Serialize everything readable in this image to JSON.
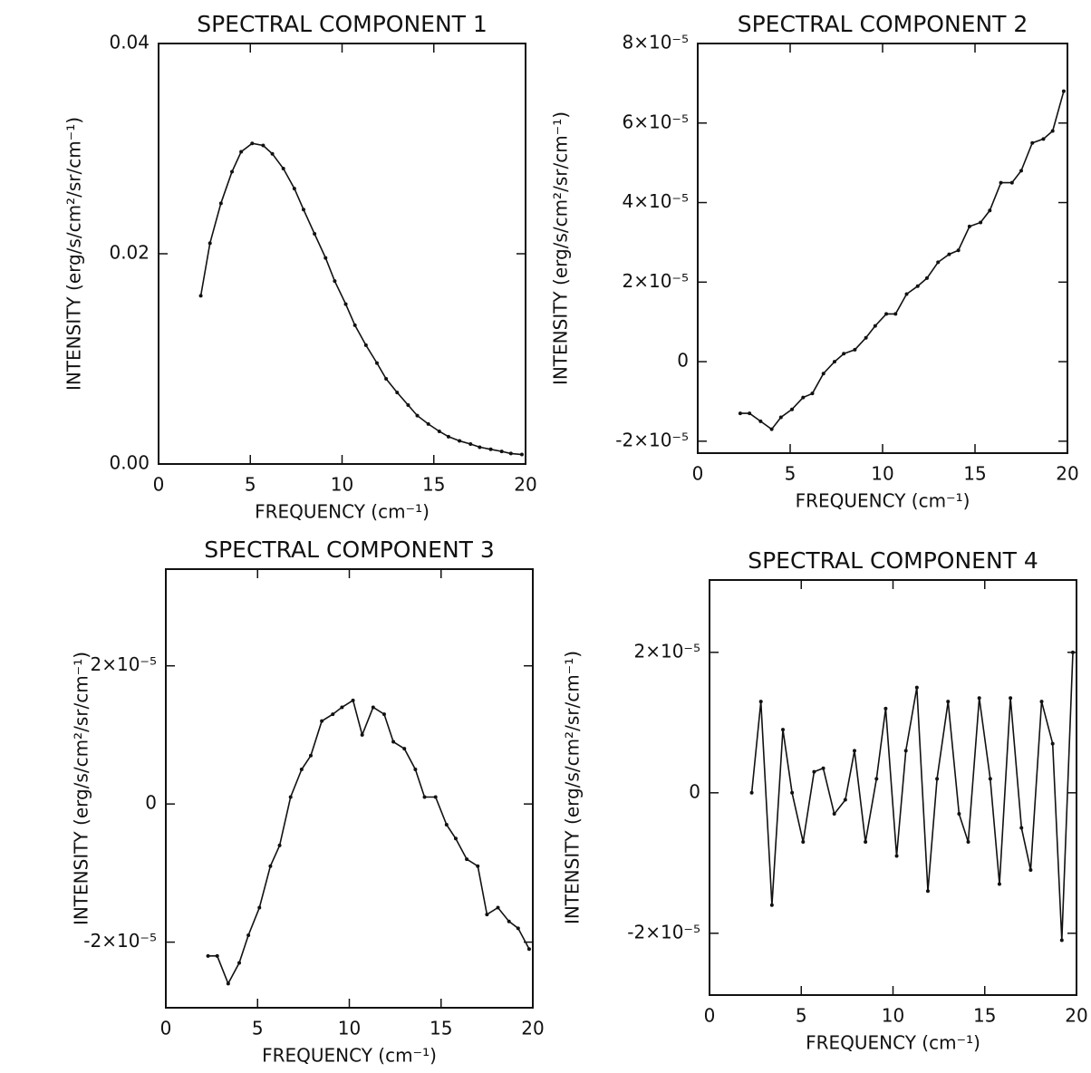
{
  "chart_data": [
    {
      "type": "line",
      "title": "SPECTRAL COMPONENT 1",
      "xlabel": "FREQUENCY (cm⁻¹)",
      "ylabel": "INTENSITY (erg/s/cm²/sr/cm⁻¹)",
      "color": "#111111",
      "x": [
        2.3,
        2.8,
        3.4,
        4.0,
        4.5,
        5.1,
        5.7,
        6.2,
        6.8,
        7.4,
        7.9,
        8.5,
        9.1,
        9.6,
        10.2,
        10.7,
        11.3,
        11.9,
        12.4,
        13.0,
        13.6,
        14.1,
        14.7,
        15.3,
        15.8,
        16.4,
        17.0,
        17.5,
        18.1,
        18.7,
        19.2,
        19.8
      ],
      "values": [
        0.016,
        0.021,
        0.0248,
        0.0278,
        0.0297,
        0.0305,
        0.0303,
        0.0295,
        0.0281,
        0.0262,
        0.0242,
        0.0219,
        0.0196,
        0.0174,
        0.0152,
        0.0132,
        0.0113,
        0.0096,
        0.0081,
        0.0068,
        0.0056,
        0.0046,
        0.0038,
        0.0031,
        0.0026,
        0.0022,
        0.0019,
        0.0016,
        0.0014,
        0.0012,
        0.001,
        0.0009
      ],
      "xlim": [
        0,
        20
      ],
      "xticks": [
        0,
        5,
        10,
        15,
        20
      ],
      "ylim": [
        0,
        0.04
      ],
      "yticks": [
        {
          "value": 0,
          "label": "0.00"
        },
        0.02,
        0.04
      ]
    },
    {
      "type": "line",
      "title": "SPECTRAL COMPONENT 2",
      "xlabel": "FREQUENCY (cm⁻¹)",
      "ylabel": "INTENSITY (erg/s/cm²/sr/cm⁻¹)",
      "color": "#111111",
      "x": [
        2.3,
        2.8,
        3.4,
        4.0,
        4.5,
        5.1,
        5.7,
        6.2,
        6.8,
        7.4,
        7.9,
        8.5,
        9.1,
        9.6,
        10.2,
        10.7,
        11.3,
        11.9,
        12.4,
        13.0,
        13.6,
        14.1,
        14.7,
        15.3,
        15.8,
        16.4,
        17.0,
        17.5,
        18.1,
        18.7,
        19.2,
        19.8
      ],
      "values": [
        -1.3e-05,
        -1.3e-05,
        -1.5e-05,
        -1.7e-05,
        -1.4e-05,
        -1.2e-05,
        -9e-06,
        -8e-06,
        -3e-06,
        0.0,
        2e-06,
        3e-06,
        6e-06,
        9e-06,
        1.2e-05,
        1.2e-05,
        1.7e-05,
        1.9e-05,
        2.1e-05,
        2.5e-05,
        2.7e-05,
        2.8e-05,
        3.4e-05,
        3.5e-05,
        3.8e-05,
        4.5e-05,
        4.5e-05,
        4.8e-05,
        5.5e-05,
        5.6e-05,
        5.8e-05,
        6.8e-05
      ],
      "xlim": [
        0,
        20
      ],
      "xticks": [
        0,
        5,
        10,
        15,
        20
      ],
      "ylim": [
        -2.3e-05,
        8e-05
      ],
      "yticks": [
        {
          "value": -2e-05,
          "label": "-2×10⁻⁵"
        },
        0,
        {
          "value": 2e-05,
          "label": "2×10⁻⁵"
        },
        {
          "value": 4e-05,
          "label": "4×10⁻⁵"
        },
        {
          "value": 6e-05,
          "label": "6×10⁻⁵"
        },
        {
          "value": 8e-05,
          "label": "8×10⁻⁵"
        }
      ]
    },
    {
      "type": "line",
      "title": "SPECTRAL COMPONENT 3",
      "xlabel": "FREQUENCY (cm⁻¹)",
      "ylabel": "INTENSITY (erg/s/cm²/sr/cm⁻¹)",
      "color": "#111111",
      "x": [
        2.3,
        2.8,
        3.4,
        4.0,
        4.5,
        5.1,
        5.7,
        6.2,
        6.8,
        7.4,
        7.9,
        8.5,
        9.1,
        9.6,
        10.2,
        10.7,
        11.3,
        11.9,
        12.4,
        13.0,
        13.6,
        14.1,
        14.7,
        15.3,
        15.8,
        16.4,
        17.0,
        17.5,
        18.1,
        18.7,
        19.2,
        19.8
      ],
      "values": [
        -2.2e-05,
        -2.2e-05,
        -2.6e-05,
        -2.3e-05,
        -1.9e-05,
        -1.5e-05,
        -9e-06,
        -6e-06,
        1e-06,
        5e-06,
        7e-06,
        1.2e-05,
        1.3e-05,
        1.4e-05,
        1.5e-05,
        1e-05,
        1.4e-05,
        1.3e-05,
        9e-06,
        8e-06,
        5e-06,
        1e-06,
        1e-06,
        -3e-06,
        -5e-06,
        -8e-06,
        -9e-06,
        -1.6e-05,
        -1.5e-05,
        -1.7e-05,
        -1.8e-05,
        -2.1e-05
      ],
      "xlim": [
        0,
        20
      ],
      "xticks": [
        0,
        5,
        10,
        15,
        20
      ],
      "ylim": [
        -2.95e-05,
        3.4e-05
      ],
      "yticks": [
        {
          "value": -2e-05,
          "label": "-2×10⁻⁵"
        },
        0,
        {
          "value": 2e-05,
          "label": "2×10⁻⁵"
        }
      ]
    },
    {
      "type": "line",
      "title": "SPECTRAL COMPONENT 4",
      "xlabel": "FREQUENCY (cm⁻¹)",
      "ylabel": "INTENSITY (erg/s/cm²/sr/cm⁻¹)",
      "color": "#111111",
      "x": [
        2.3,
        2.8,
        3.4,
        4.0,
        4.5,
        5.1,
        5.7,
        6.2,
        6.8,
        7.4,
        7.9,
        8.5,
        9.1,
        9.6,
        10.2,
        10.7,
        11.3,
        11.9,
        12.4,
        13.0,
        13.6,
        14.1,
        14.7,
        15.3,
        15.8,
        16.4,
        17.0,
        17.5,
        18.1,
        18.7,
        19.2,
        19.8
      ],
      "values": [
        0.0,
        1.3e-05,
        -1.6e-05,
        9e-06,
        0.0,
        -7e-06,
        3e-06,
        3.5e-06,
        -3e-06,
        -1e-06,
        6e-06,
        -7e-06,
        2e-06,
        1.2e-05,
        -9e-06,
        6e-06,
        1.5e-05,
        -1.4e-05,
        2e-06,
        1.3e-05,
        -3e-06,
        -7e-06,
        1.35e-05,
        2e-06,
        -1.3e-05,
        1.35e-05,
        -5e-06,
        -1.1e-05,
        1.3e-05,
        7e-06,
        -2.1e-05,
        2e-05
      ],
      "xlim": [
        0,
        20
      ],
      "xticks": [
        0,
        5,
        10,
        15,
        20
      ],
      "ylim": [
        -2.88e-05,
        3.03e-05
      ],
      "yticks": [
        {
          "value": -2e-05,
          "label": "-2×10⁻⁵"
        },
        0,
        {
          "value": 2e-05,
          "label": "2×10⁻⁵"
        }
      ]
    }
  ]
}
